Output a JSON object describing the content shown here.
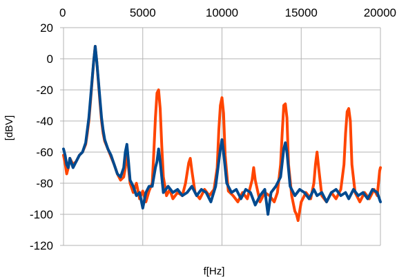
{
  "chart_data": {
    "type": "line",
    "title": "",
    "xlabel": "f[Hz]",
    "ylabel": "[dBV]",
    "xlim": [
      0,
      20000
    ],
    "ylim": [
      -120,
      20
    ],
    "x_ticks": [
      0,
      5000,
      10000,
      15000,
      20000
    ],
    "y_ticks": [
      20,
      0,
      -20,
      -40,
      -60,
      -80,
      -100,
      -120
    ],
    "x_tick_labels": [
      "0",
      "5000",
      "10000",
      "15000",
      "20000"
    ],
    "y_tick_labels": [
      "20",
      "0",
      "-20",
      "-40",
      "-60",
      "-80",
      "-100",
      "-120"
    ],
    "x_axis_position": "top",
    "grid": true,
    "legend": "none",
    "colors": {
      "orange": "#ff4500",
      "blue": "#004a8f",
      "grid": "#b3b3b3"
    },
    "series": [
      {
        "color": "#ff4500",
        "points": [
          [
            0,
            -62
          ],
          [
            100,
            -67
          ],
          [
            200,
            -74
          ],
          [
            300,
            -70
          ],
          [
            400,
            -64
          ],
          [
            600,
            -68
          ],
          [
            800,
            -66
          ],
          [
            1000,
            -62
          ],
          [
            1200,
            -60
          ],
          [
            1400,
            -55
          ],
          [
            1500,
            -48
          ],
          [
            1600,
            -40
          ],
          [
            1700,
            -28
          ],
          [
            1800,
            -15
          ],
          [
            1900,
            -2
          ],
          [
            2000,
            8
          ],
          [
            2100,
            -2
          ],
          [
            2200,
            -15
          ],
          [
            2300,
            -28
          ],
          [
            2400,
            -40
          ],
          [
            2500,
            -48
          ],
          [
            2600,
            -53
          ],
          [
            2800,
            -58
          ],
          [
            3000,
            -63
          ],
          [
            3200,
            -68
          ],
          [
            3400,
            -74
          ],
          [
            3600,
            -78
          ],
          [
            3800,
            -76
          ],
          [
            3900,
            -70
          ],
          [
            4000,
            -58
          ],
          [
            4100,
            -70
          ],
          [
            4200,
            -80
          ],
          [
            4400,
            -86
          ],
          [
            4600,
            -80
          ],
          [
            4800,
            -90
          ],
          [
            5000,
            -85
          ],
          [
            5200,
            -92
          ],
          [
            5400,
            -85
          ],
          [
            5600,
            -80
          ],
          [
            5700,
            -60
          ],
          [
            5800,
            -38
          ],
          [
            5900,
            -22
          ],
          [
            6000,
            -20
          ],
          [
            6100,
            -32
          ],
          [
            6200,
            -56
          ],
          [
            6300,
            -76
          ],
          [
            6500,
            -88
          ],
          [
            6700,
            -84
          ],
          [
            6900,
            -90
          ],
          [
            7200,
            -86
          ],
          [
            7500,
            -88
          ],
          [
            7700,
            -80
          ],
          [
            7900,
            -67
          ],
          [
            8000,
            -64
          ],
          [
            8100,
            -72
          ],
          [
            8300,
            -86
          ],
          [
            8600,
            -90
          ],
          [
            8900,
            -84
          ],
          [
            9200,
            -88
          ],
          [
            9500,
            -84
          ],
          [
            9700,
            -70
          ],
          [
            9800,
            -46
          ],
          [
            9900,
            -30
          ],
          [
            10000,
            -25
          ],
          [
            10100,
            -35
          ],
          [
            10200,
            -62
          ],
          [
            10400,
            -85
          ],
          [
            10700,
            -88
          ],
          [
            11000,
            -92
          ],
          [
            11300,
            -86
          ],
          [
            11600,
            -90
          ],
          [
            11900,
            -78
          ],
          [
            12000,
            -70
          ],
          [
            12100,
            -78
          ],
          [
            12400,
            -92
          ],
          [
            12700,
            -86
          ],
          [
            13000,
            -88
          ],
          [
            13300,
            -92
          ],
          [
            13500,
            -86
          ],
          [
            13700,
            -68
          ],
          [
            13800,
            -48
          ],
          [
            13900,
            -30
          ],
          [
            14000,
            -29
          ],
          [
            14100,
            -38
          ],
          [
            14200,
            -68
          ],
          [
            14400,
            -88
          ],
          [
            14600,
            -98
          ],
          [
            14700,
            -100
          ],
          [
            14800,
            -104
          ],
          [
            15000,
            -92
          ],
          [
            15300,
            -86
          ],
          [
            15600,
            -90
          ],
          [
            15800,
            -80
          ],
          [
            15900,
            -68
          ],
          [
            16000,
            -60
          ],
          [
            16100,
            -70
          ],
          [
            16300,
            -88
          ],
          [
            16600,
            -92
          ],
          [
            16900,
            -86
          ],
          [
            17200,
            -90
          ],
          [
            17500,
            -84
          ],
          [
            17700,
            -68
          ],
          [
            17800,
            -48
          ],
          [
            17900,
            -34
          ],
          [
            18000,
            -32
          ],
          [
            18100,
            -40
          ],
          [
            18200,
            -68
          ],
          [
            18400,
            -86
          ],
          [
            18700,
            -92
          ],
          [
            19000,
            -86
          ],
          [
            19300,
            -90
          ],
          [
            19600,
            -84
          ],
          [
            19800,
            -88
          ],
          [
            19950,
            -72
          ],
          [
            20000,
            -70
          ]
        ]
      },
      {
        "color": "#004a8f",
        "points": [
          [
            0,
            -58
          ],
          [
            100,
            -62
          ],
          [
            200,
            -68
          ],
          [
            300,
            -70
          ],
          [
            400,
            -64
          ],
          [
            600,
            -70
          ],
          [
            800,
            -66
          ],
          [
            1000,
            -62
          ],
          [
            1200,
            -60
          ],
          [
            1400,
            -54
          ],
          [
            1500,
            -46
          ],
          [
            1600,
            -38
          ],
          [
            1700,
            -26
          ],
          [
            1800,
            -14
          ],
          [
            1900,
            -2
          ],
          [
            2000,
            8
          ],
          [
            2100,
            -2
          ],
          [
            2200,
            -14
          ],
          [
            2300,
            -26
          ],
          [
            2400,
            -38
          ],
          [
            2500,
            -46
          ],
          [
            2600,
            -52
          ],
          [
            2800,
            -58
          ],
          [
            3000,
            -62
          ],
          [
            3200,
            -68
          ],
          [
            3400,
            -74
          ],
          [
            3600,
            -76
          ],
          [
            3800,
            -70
          ],
          [
            3900,
            -60
          ],
          [
            4000,
            -55
          ],
          [
            4100,
            -66
          ],
          [
            4200,
            -78
          ],
          [
            4400,
            -82
          ],
          [
            4600,
            -88
          ],
          [
            4800,
            -86
          ],
          [
            5000,
            -96
          ],
          [
            5200,
            -86
          ],
          [
            5400,
            -82
          ],
          [
            5600,
            -82
          ],
          [
            5800,
            -70
          ],
          [
            5900,
            -66
          ],
          [
            6000,
            -58
          ],
          [
            6100,
            -66
          ],
          [
            6300,
            -86
          ],
          [
            6600,
            -82
          ],
          [
            6900,
            -86
          ],
          [
            7200,
            -84
          ],
          [
            7500,
            -88
          ],
          [
            7800,
            -86
          ],
          [
            8100,
            -82
          ],
          [
            8400,
            -88
          ],
          [
            8700,
            -84
          ],
          [
            9000,
            -86
          ],
          [
            9300,
            -92
          ],
          [
            9600,
            -82
          ],
          [
            9800,
            -66
          ],
          [
            9900,
            -58
          ],
          [
            10000,
            -52
          ],
          [
            10100,
            -60
          ],
          [
            10300,
            -80
          ],
          [
            10600,
            -86
          ],
          [
            10900,
            -84
          ],
          [
            11200,
            -90
          ],
          [
            11500,
            -84
          ],
          [
            11800,
            -86
          ],
          [
            12100,
            -94
          ],
          [
            12400,
            -88
          ],
          [
            12700,
            -84
          ],
          [
            12900,
            -100
          ],
          [
            13100,
            -86
          ],
          [
            13400,
            -82
          ],
          [
            13700,
            -76
          ],
          [
            13900,
            -58
          ],
          [
            14000,
            -54
          ],
          [
            14100,
            -60
          ],
          [
            14300,
            -82
          ],
          [
            14600,
            -88
          ],
          [
            14900,
            -84
          ],
          [
            15200,
            -86
          ],
          [
            15500,
            -90
          ],
          [
            15800,
            -84
          ],
          [
            16000,
            -88
          ],
          [
            16300,
            -86
          ],
          [
            16600,
            -92
          ],
          [
            16900,
            -86
          ],
          [
            17200,
            -84
          ],
          [
            17500,
            -88
          ],
          [
            17800,
            -86
          ],
          [
            18000,
            -90
          ],
          [
            18300,
            -84
          ],
          [
            18600,
            -88
          ],
          [
            18900,
            -86
          ],
          [
            19200,
            -90
          ],
          [
            19500,
            -84
          ],
          [
            19800,
            -86
          ],
          [
            20000,
            -92
          ]
        ]
      }
    ]
  }
}
